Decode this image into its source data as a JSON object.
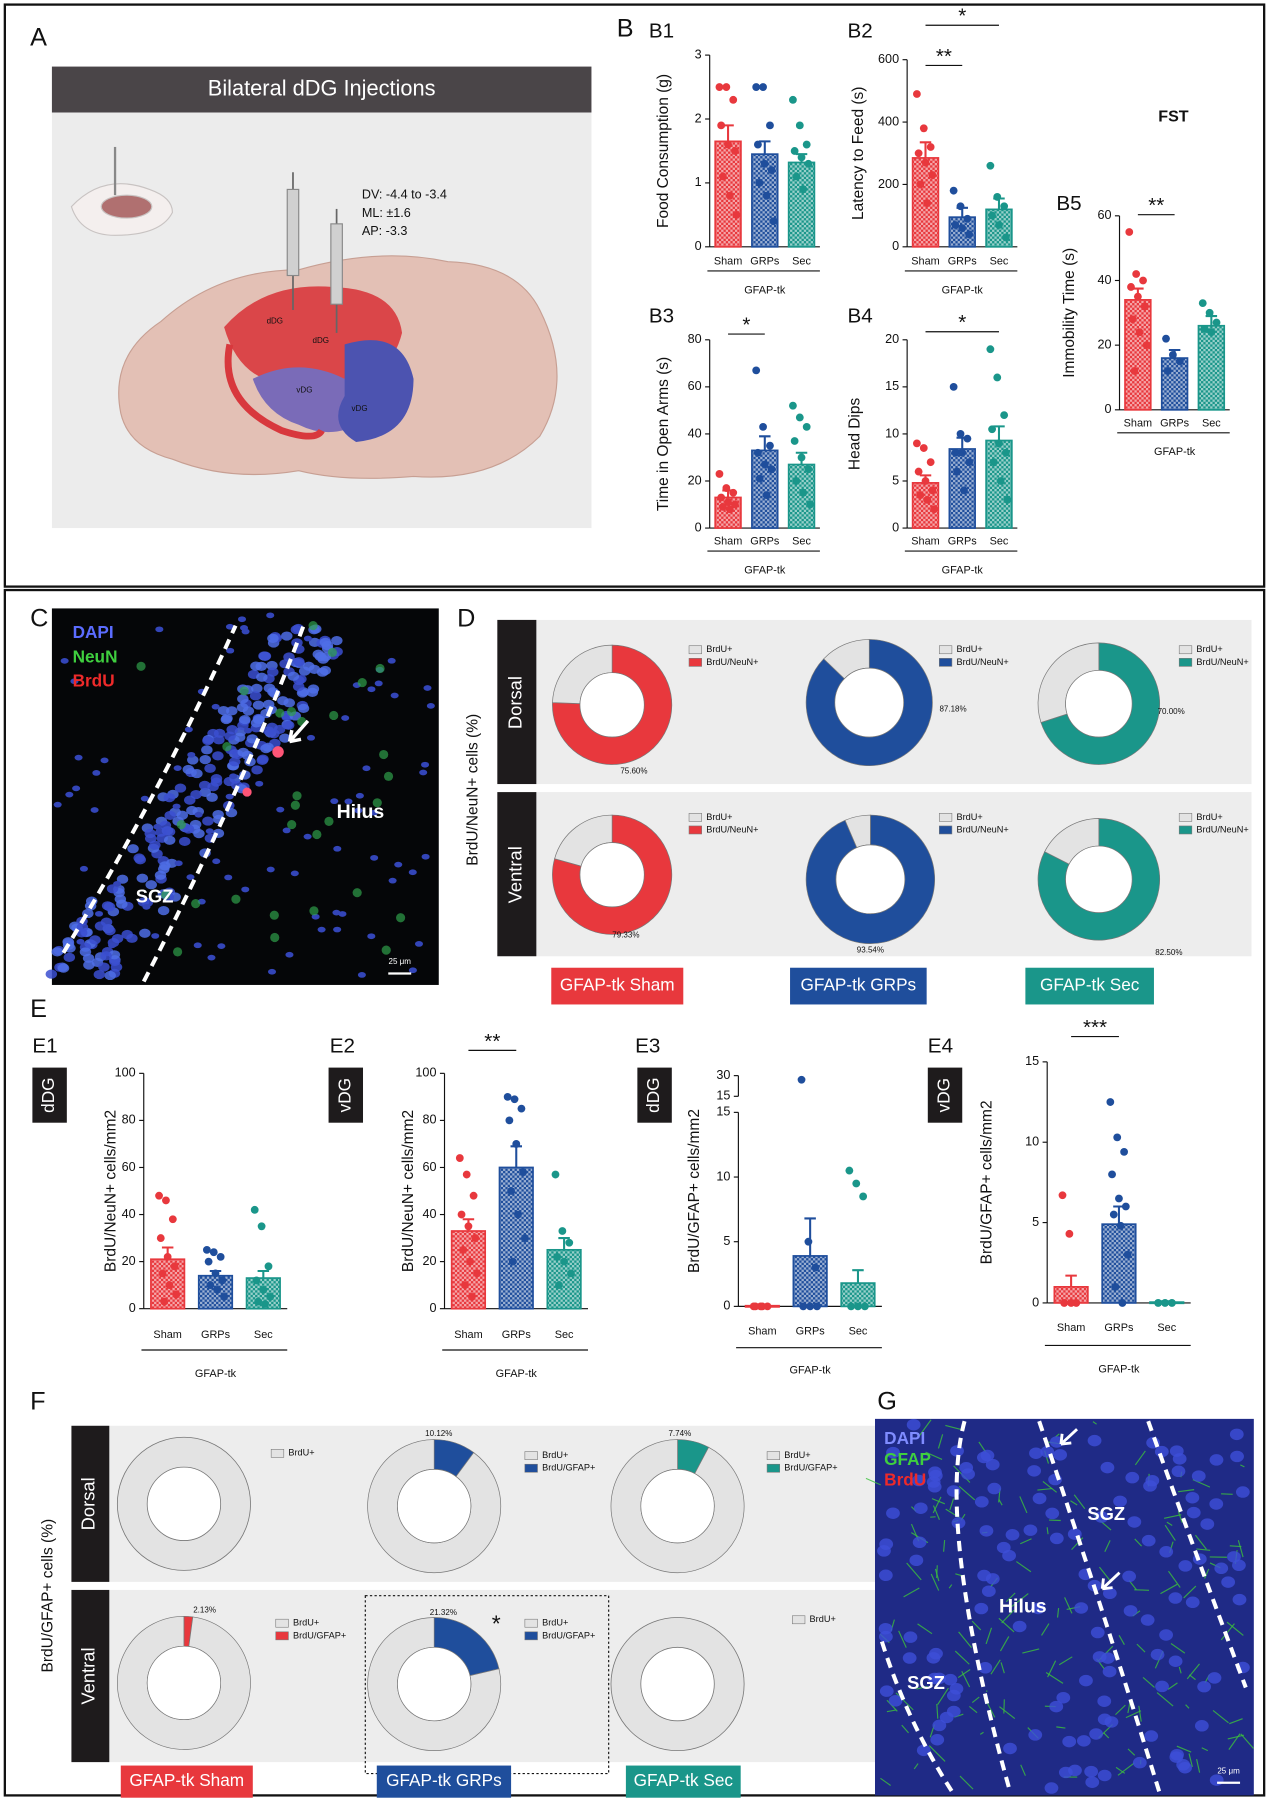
{
  "panel_A": {
    "letter": "A",
    "banner": "Bilateral dDG Injections",
    "coords": [
      "DV: -4.4 to -3.4",
      "ML: ±1.6",
      "AP: -3.3"
    ],
    "regions": [
      "dDG",
      "dDG",
      "vDG",
      "vDG"
    ]
  },
  "panel_B": {
    "letter": "B"
  },
  "panel_C": {
    "letter": "C",
    "stains": [
      "DAPI",
      "NeuN",
      "BrdU"
    ],
    "regions": [
      "Hilus",
      "SGZ"
    ],
    "scale": "25 μm"
  },
  "panel_D": {
    "letter": "D",
    "ylabel": "BrdU/NeuN+ cells (%)",
    "rows": [
      "Dorsal",
      "Ventral"
    ],
    "groups": [
      {
        "label": "GFAP-tk Sham",
        "color": "#e8383d"
      },
      {
        "label": "GFAP-tk GRPs",
        "color": "#1f4e9c"
      },
      {
        "label": "GFAP-tk Sec",
        "color": "#1a968a"
      }
    ]
  },
  "panel_E": {
    "letter": "E"
  },
  "panel_F": {
    "letter": "F",
    "ylabel": "BrdU/GFAP+ cells (%)",
    "rows": [
      "Dorsal",
      "Ventral"
    ],
    "groups": [
      {
        "label": "GFAP-tk Sham",
        "color": "#e8383d"
      },
      {
        "label": "GFAP-tk GRPs",
        "color": "#1f4e9c"
      },
      {
        "label": "GFAP-tk Sec",
        "color": "#1a968a"
      }
    ]
  },
  "panel_G": {
    "letter": "G",
    "stains": [
      "DAPI",
      "GFAP",
      "BrdU"
    ],
    "regions": [
      "SGZ",
      "Hilus",
      "SGZ"
    ],
    "scale": "25 μm"
  },
  "chart_data": [
    {
      "type": "bar",
      "label": "B1",
      "ylabel": "Food Consumption (g)",
      "group_label": "GFAP-tk",
      "categories": [
        "Sham",
        "GRPs",
        "Sec"
      ],
      "colors": [
        "#e8383d",
        "#1f4e9c",
        "#1a968a"
      ],
      "values": [
        1.65,
        1.45,
        1.32
      ],
      "errors": [
        0.25,
        0.2,
        0.13
      ],
      "points": [
        [
          2.5,
          2.5,
          2.3,
          1.9,
          1.6,
          1.5,
          1.1,
          0.8,
          0.5
        ],
        [
          2.5,
          2.5,
          1.9,
          1.6,
          1.3,
          1.2,
          1.0,
          0.8,
          0.4
        ],
        [
          2.3,
          1.9,
          1.6,
          1.5,
          1.4,
          1.3,
          1.1,
          0.9
        ]
      ],
      "ylim": [
        0,
        3
      ],
      "yticks": [
        0,
        1,
        2,
        3
      ],
      "significance": []
    },
    {
      "type": "bar",
      "label": "B2",
      "ylabel": "Latency to Feed (s)",
      "group_label": "GFAP-tk",
      "categories": [
        "Sham",
        "GRPs",
        "Sec"
      ],
      "colors": [
        "#e8383d",
        "#1f4e9c",
        "#1a968a"
      ],
      "values": [
        285,
        95,
        120
      ],
      "errors": [
        50,
        30,
        35
      ],
      "points": [
        [
          490,
          380,
          320,
          300,
          270,
          230,
          200,
          140
        ],
        [
          180,
          130,
          90,
          70,
          60,
          40
        ],
        [
          260,
          160,
          130,
          100,
          70,
          30
        ]
      ],
      "ylim": [
        0,
        600
      ],
      "yticks": [
        0,
        200,
        400,
        600
      ],
      "significance": [
        {
          "label": "**",
          "pair": [
            0,
            1
          ]
        },
        {
          "label": "*",
          "pair": [
            0,
            2
          ]
        }
      ]
    },
    {
      "type": "bar",
      "label": "B3",
      "ylabel": "Time in Open Arms (s)",
      "group_label": "GFAP-tk",
      "categories": [
        "Sham",
        "GRPs",
        "Sec"
      ],
      "colors": [
        "#e8383d",
        "#1f4e9c",
        "#1a968a"
      ],
      "values": [
        13,
        33,
        27
      ],
      "errors": [
        3,
        6,
        5
      ],
      "points": [
        [
          23,
          17,
          15,
          13,
          11,
          10,
          9,
          8
        ],
        [
          67,
          43,
          35,
          32,
          27,
          25,
          21,
          14
        ],
        [
          52,
          47,
          43,
          37,
          30,
          25,
          20,
          15,
          10
        ]
      ],
      "ylim": [
        0,
        80
      ],
      "yticks": [
        0,
        20,
        40,
        60,
        80
      ],
      "significance": [
        {
          "label": "*",
          "pair": [
            0,
            1
          ]
        }
      ]
    },
    {
      "type": "bar",
      "label": "B4",
      "ylabel": "Head Dips",
      "group_label": "GFAP-tk",
      "categories": [
        "Sham",
        "GRPs",
        "Sec"
      ],
      "colors": [
        "#e8383d",
        "#1f4e9c",
        "#1a968a"
      ],
      "values": [
        4.8,
        8.4,
        9.3
      ],
      "errors": [
        0.8,
        1.2,
        1.5
      ],
      "points": [
        [
          9,
          8.5,
          7,
          6,
          5,
          4,
          3.5,
          3,
          2
        ],
        [
          15,
          10,
          9.5,
          8,
          8,
          7,
          6,
          4
        ],
        [
          19,
          16,
          12,
          10.5,
          9,
          8,
          7,
          5,
          3
        ]
      ],
      "ylim": [
        0,
        20
      ],
      "yticks": [
        0,
        5,
        10,
        15,
        20
      ],
      "significance": [
        {
          "label": "*",
          "pair": [
            0,
            2
          ]
        }
      ]
    },
    {
      "type": "bar",
      "label": "B5",
      "title": "FST",
      "ylabel": "Immobility Time (s)",
      "group_label": "GFAP-tk",
      "categories": [
        "Sham",
        "GRPs",
        "Sec"
      ],
      "colors": [
        "#e8383d",
        "#1f4e9c",
        "#1a968a"
      ],
      "values": [
        34,
        16,
        26
      ],
      "errors": [
        3.5,
        2.5,
        3
      ],
      "points": [
        [
          55,
          42,
          40,
          38,
          35,
          32,
          28,
          24,
          20,
          12
        ],
        [
          22,
          17,
          15,
          12
        ],
        [
          33,
          30,
          27,
          25,
          24
        ]
      ],
      "ylim": [
        0,
        60
      ],
      "yticks": [
        0,
        20,
        40,
        60
      ],
      "significance": [
        {
          "label": "**",
          "pair": [
            0,
            1
          ]
        }
      ]
    },
    {
      "type": "bar",
      "label": "E1",
      "tag": "dDG",
      "ylabel": "BrdU/NeuN+ cells/mm2",
      "group_label": "GFAP-tk",
      "categories": [
        "Sham",
        "GRPs",
        "Sec"
      ],
      "colors": [
        "#e8383d",
        "#1f4e9c",
        "#1a968a"
      ],
      "values": [
        21,
        14,
        13
      ],
      "errors": [
        5,
        2,
        3
      ],
      "points": [
        [
          48,
          46,
          38,
          30,
          22,
          18,
          15,
          10,
          6,
          3
        ],
        [
          25,
          24,
          22,
          20,
          15,
          12,
          10,
          8,
          5
        ],
        [
          42,
          35,
          18,
          12,
          8,
          5,
          3,
          2
        ]
      ],
      "ylim": [
        0,
        100
      ],
      "yticks": [
        0,
        20,
        40,
        60,
        80,
        100
      ],
      "significance": []
    },
    {
      "type": "bar",
      "label": "E2",
      "tag": "vDG",
      "ylabel": "BrdU/NeuN+ cells/mm2",
      "group_label": "GFAP-tk",
      "categories": [
        "Sham",
        "GRPs",
        "Sec"
      ],
      "colors": [
        "#e8383d",
        "#1f4e9c",
        "#1a968a"
      ],
      "values": [
        33,
        60,
        25
      ],
      "errors": [
        5,
        9,
        5
      ],
      "points": [
        [
          64,
          57,
          48,
          40,
          35,
          30,
          25,
          20,
          15,
          10,
          5
        ],
        [
          90,
          89,
          85,
          80,
          70,
          58,
          50,
          40,
          30,
          20
        ],
        [
          57,
          33,
          28,
          22,
          20,
          15,
          10
        ]
      ],
      "ylim": [
        0,
        100
      ],
      "yticks": [
        0,
        20,
        40,
        60,
        80,
        100
      ],
      "significance": [
        {
          "label": "**",
          "pair": [
            0,
            1
          ]
        }
      ]
    },
    {
      "type": "bar",
      "label": "E3",
      "tag": "dDG",
      "ylabel": "BrdU/GFAP+ cells/mm2",
      "group_label": "GFAP-tk",
      "categories": [
        "Sham",
        "GRPs",
        "Sec"
      ],
      "colors": [
        "#e8383d",
        "#1f4e9c",
        "#1a968a"
      ],
      "values": [
        0.05,
        3.9,
        1.8
      ],
      "errors": [
        0.05,
        2.9,
        1.0
      ],
      "points": [
        [
          0,
          0,
          0,
          0,
          0
        ],
        [
          27,
          5,
          3,
          0,
          0,
          0
        ],
        [
          10.5,
          9.5,
          8.5,
          0,
          0,
          0
        ]
      ],
      "ylim": [
        0,
        15
      ],
      "yticks": [
        0,
        5,
        10,
        15
      ],
      "break": {
        "ylim": [
          15,
          30
        ],
        "yticks": [
          15,
          30
        ]
      },
      "significance": []
    },
    {
      "type": "bar",
      "label": "E4",
      "tag": "vDG",
      "ylabel": "BrdU/GFAP+ cells/mm2",
      "group_label": "GFAP-tk",
      "categories": [
        "Sham",
        "GRPs",
        "Sec"
      ],
      "colors": [
        "#e8383d",
        "#1f4e9c",
        "#1a968a"
      ],
      "values": [
        1.0,
        4.9,
        0.05
      ],
      "errors": [
        0.7,
        1.1,
        0.05
      ],
      "points": [
        [
          6.7,
          4.3,
          0,
          0,
          0
        ],
        [
          12.5,
          10.3,
          9.4,
          8.0,
          6.5,
          6.0,
          5.5,
          4.8,
          3,
          1,
          0
        ],
        [
          0,
          0,
          0
        ]
      ],
      "ylim": [
        0,
        15
      ],
      "yticks": [
        0,
        5,
        10,
        15
      ],
      "significance": [
        {
          "label": "***",
          "pair": [
            0,
            1
          ]
        }
      ]
    },
    {
      "type": "pie",
      "categories": [
        "BrdU+",
        "BrdU/NeuN+"
      ],
      "colors": [
        "#e3e3e3",
        "#e8383d"
      ],
      "values": [
        24.4,
        75.6
      ],
      "value_labels": [
        null,
        "75.60%"
      ]
    },
    {
      "type": "pie",
      "categories": [
        "BrdU+",
        "BrdU/NeuN+"
      ],
      "colors": [
        "#e3e3e3",
        "#1f4e9c"
      ],
      "values": [
        12.82,
        87.18
      ],
      "value_labels": [
        null,
        "87.18%"
      ]
    },
    {
      "type": "pie",
      "categories": [
        "BrdU+",
        "BrdU/NeuN+"
      ],
      "colors": [
        "#e3e3e3",
        "#1a968a"
      ],
      "values": [
        30,
        70
      ],
      "value_labels": [
        null,
        "70.00%"
      ]
    },
    {
      "type": "pie",
      "categories": [
        "BrdU+",
        "BrdU/NeuN+"
      ],
      "colors": [
        "#e3e3e3",
        "#e8383d"
      ],
      "values": [
        20.67,
        79.33
      ],
      "value_labels": [
        null,
        "79.33%"
      ]
    },
    {
      "type": "pie",
      "categories": [
        "BrdU+",
        "BrdU/NeuN+"
      ],
      "colors": [
        "#e3e3e3",
        "#1f4e9c"
      ],
      "values": [
        6.46,
        93.54
      ],
      "value_labels": [
        null,
        "93.54%"
      ]
    },
    {
      "type": "pie",
      "categories": [
        "BrdU+",
        "BrdU/NeuN+"
      ],
      "colors": [
        "#e3e3e3",
        "#1a968a"
      ],
      "values": [
        17.5,
        82.5
      ],
      "value_labels": [
        null,
        "82.50%"
      ]
    },
    {
      "type": "pie",
      "categories": [
        "BrdU+"
      ],
      "colors": [
        "#e3e3e3"
      ],
      "values": [
        100
      ]
    },
    {
      "type": "pie",
      "categories": [
        "BrdU+",
        "BrdU/GFAP+"
      ],
      "colors": [
        "#e3e3e3",
        "#1f4e9c"
      ],
      "values": [
        89.88,
        10.12
      ],
      "value_labels": [
        null,
        "10.12%"
      ]
    },
    {
      "type": "pie",
      "categories": [
        "BrdU+",
        "BrdU/GFAP+"
      ],
      "colors": [
        "#e3e3e3",
        "#1a968a"
      ],
      "values": [
        92.26,
        7.74
      ],
      "value_labels": [
        null,
        "7.74%"
      ]
    },
    {
      "type": "pie",
      "categories": [
        "BrdU+",
        "BrdU/GFAP+"
      ],
      "colors": [
        "#e3e3e3",
        "#e8383d"
      ],
      "values": [
        97.87,
        2.13
      ],
      "value_labels": [
        null,
        "2.13%"
      ]
    },
    {
      "type": "pie",
      "categories": [
        "BrdU+",
        "BrdU/GFAP+"
      ],
      "colors": [
        "#e3e3e3",
        "#1f4e9c"
      ],
      "values": [
        78.68,
        21.32
      ],
      "value_labels": [
        null,
        "21.32%"
      ],
      "annotation": "*"
    },
    {
      "type": "pie",
      "categories": [
        "BrdU+"
      ],
      "colors": [
        "#e3e3e3"
      ],
      "values": [
        100
      ]
    }
  ]
}
